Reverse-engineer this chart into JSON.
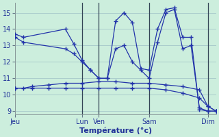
{
  "xlabel": "Température (°c)",
  "background_color": "#cceedd",
  "line_color": "#2233aa",
  "grid_color": "#aacccc",
  "xlim": [
    0,
    12
  ],
  "ylim": [
    8.8,
    15.6
  ],
  "yticks": [
    9,
    10,
    11,
    12,
    13,
    14,
    15
  ],
  "day_labels": [
    "Jeu",
    "Lun",
    "Ven",
    "Sam",
    "Dim"
  ],
  "day_positions": [
    0,
    4,
    5,
    8,
    11.5
  ],
  "vline_positions": [
    4,
    5,
    8,
    11.5
  ],
  "lines": [
    {
      "x": [
        0,
        0.5,
        3,
        3.5,
        4,
        4.5,
        5,
        5.5,
        6,
        6.5,
        7,
        7.5,
        8,
        8.5,
        9,
        9.5,
        10,
        10.5,
        11,
        11.5,
        12
      ],
      "y": [
        13.7,
        13.5,
        14.0,
        13.1,
        12.1,
        11.5,
        11.0,
        11.0,
        14.5,
        15.0,
        14.4,
        11.6,
        11.5,
        14.0,
        15.2,
        15.3,
        13.5,
        13.5,
        9.1,
        9.0,
        9.0
      ]
    },
    {
      "x": [
        0,
        0.5,
        3,
        3.5,
        4,
        4.5,
        5,
        5.5,
        6,
        6.5,
        7,
        7.5,
        8,
        8.5,
        9,
        9.5,
        10,
        10.5,
        11,
        11.5,
        12
      ],
      "y": [
        13.5,
        13.2,
        12.8,
        12.5,
        12.0,
        11.5,
        11.0,
        11.0,
        12.8,
        13.0,
        12.0,
        11.5,
        11.0,
        13.2,
        15.0,
        15.2,
        12.8,
        13.0,
        9.2,
        9.0,
        9.0
      ]
    },
    {
      "x": [
        0,
        0.5,
        1,
        2,
        3,
        4,
        5,
        6,
        7,
        8,
        9,
        10,
        11,
        11.5,
        12
      ],
      "y": [
        10.4,
        10.4,
        10.5,
        10.6,
        10.7,
        10.7,
        10.8,
        10.8,
        10.7,
        10.7,
        10.6,
        10.5,
        10.3,
        9.3,
        9.0
      ]
    },
    {
      "x": [
        0,
        1,
        2,
        3,
        4,
        5,
        6,
        7,
        8,
        9,
        10,
        11,
        11.5,
        12
      ],
      "y": [
        10.4,
        10.4,
        10.4,
        10.4,
        10.4,
        10.4,
        10.4,
        10.4,
        10.4,
        10.3,
        10.1,
        9.8,
        9.3,
        9.0
      ]
    }
  ]
}
